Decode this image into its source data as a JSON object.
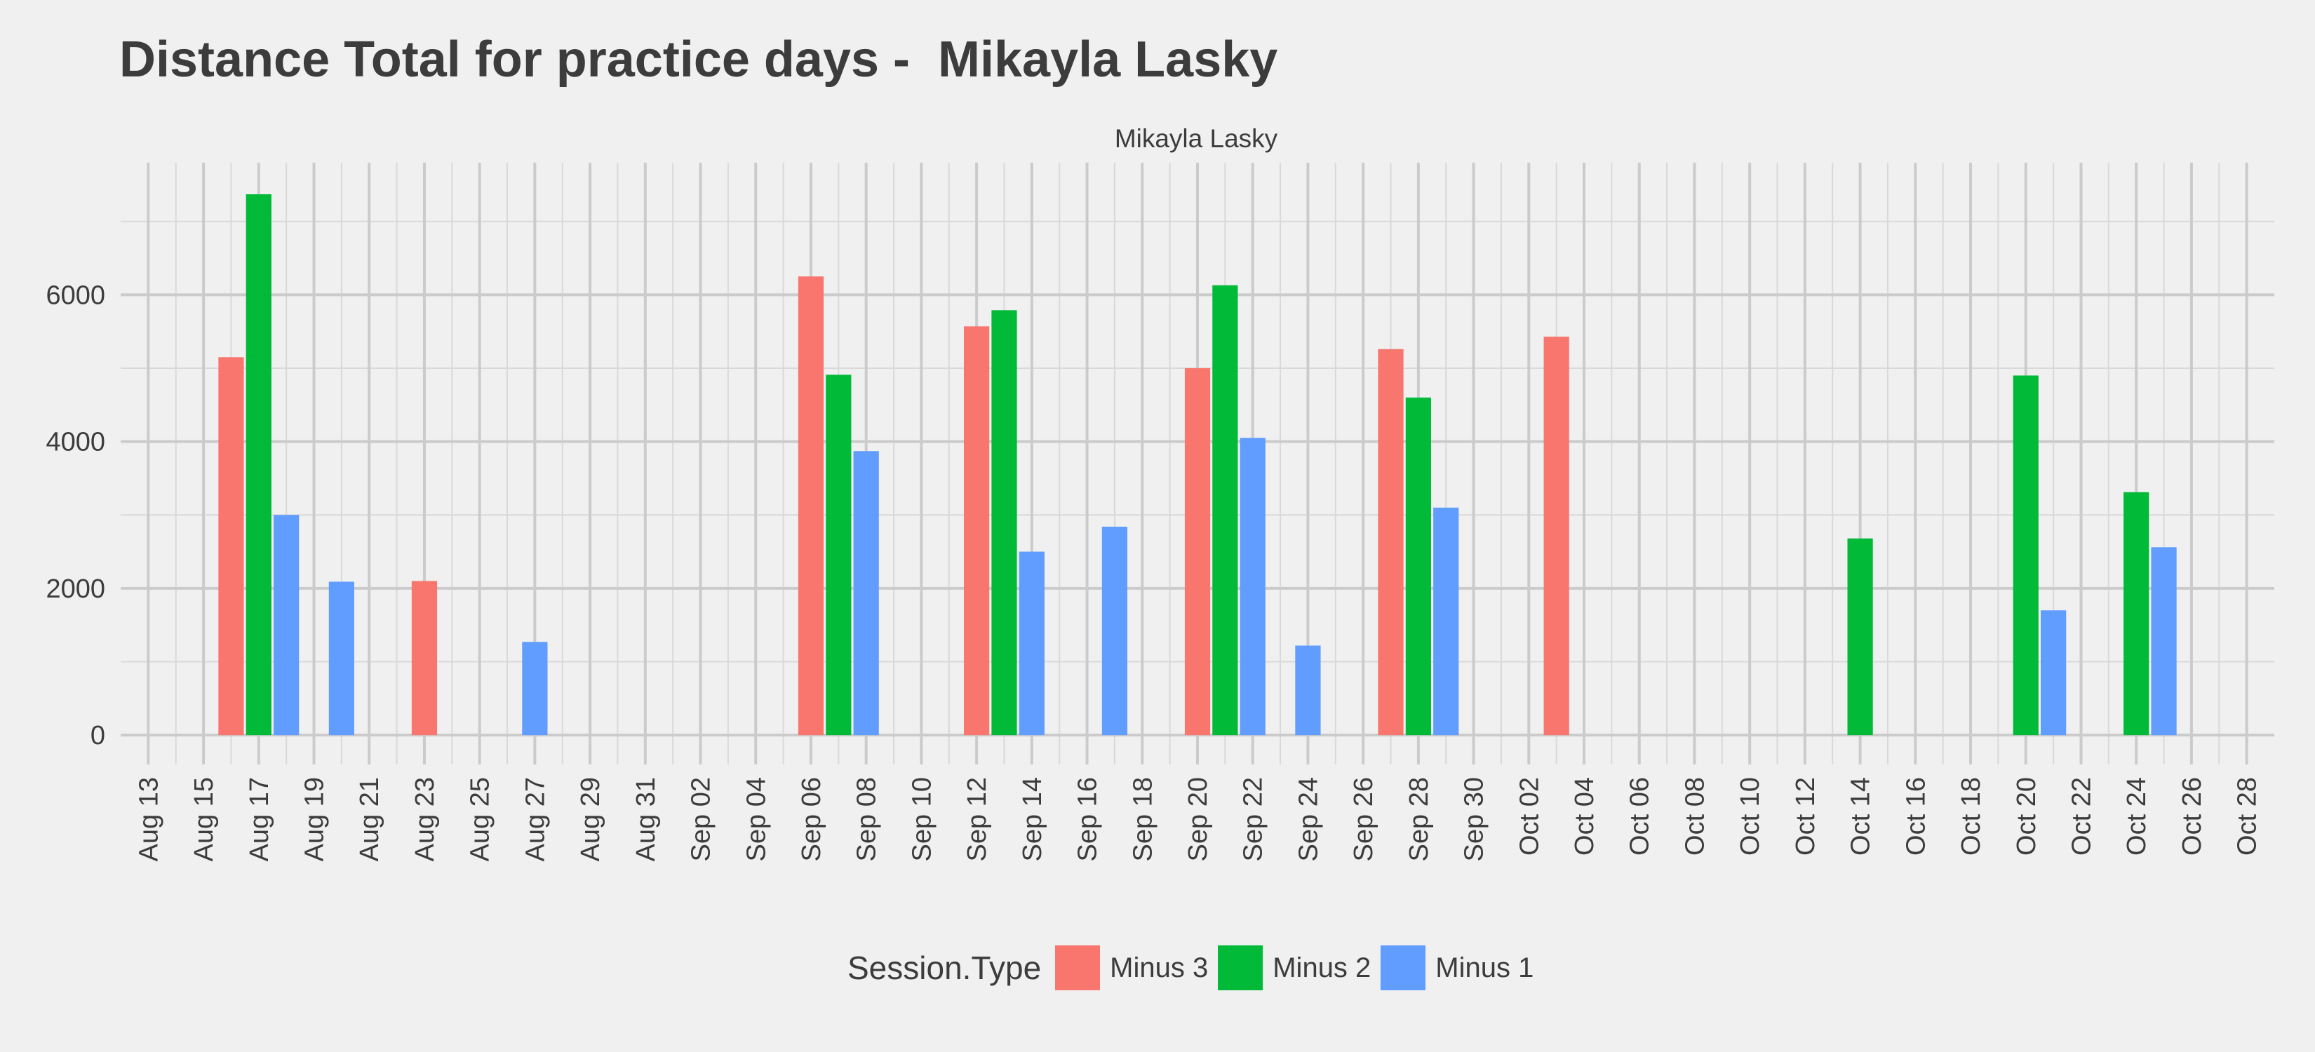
{
  "chart_data": {
    "type": "bar",
    "title": "Distance Total for practice days -  Mikayla Lasky",
    "facet_label": "Mikayla Lasky",
    "xlabel": "",
    "ylabel": "",
    "x_axis": {
      "type": "date",
      "range": [
        "2024-08-12",
        "2024-10-29"
      ],
      "tick_labels": [
        "Aug 13",
        "Aug 15",
        "Aug 17",
        "Aug 19",
        "Aug 21",
        "Aug 23",
        "Aug 25",
        "Aug 27",
        "Aug 29",
        "Aug 31",
        "Sep 02",
        "Sep 04",
        "Sep 06",
        "Sep 08",
        "Sep 10",
        "Sep 12",
        "Sep 14",
        "Sep 16",
        "Sep 18",
        "Sep 20",
        "Sep 22",
        "Sep 24",
        "Sep 26",
        "Sep 28",
        "Sep 30",
        "Oct 02",
        "Oct 04",
        "Oct 06",
        "Oct 08",
        "Oct 10",
        "Oct 12",
        "Oct 14",
        "Oct 16",
        "Oct 18",
        "Oct 20",
        "Oct 22",
        "Oct 24",
        "Oct 26",
        "Oct 28"
      ],
      "label_rotation": -90
    },
    "y_axis": {
      "range": [
        -400,
        7800
      ],
      "ticks": [
        0,
        2000,
        4000,
        6000
      ],
      "tick_labels": [
        "0",
        "2000",
        "4000",
        "6000"
      ]
    },
    "grid": true,
    "legend": {
      "title": "Session.Type",
      "position": "bottom"
    },
    "series": [
      {
        "name": "Minus 3",
        "color": "#F8766D",
        "points": [
          {
            "x": "2024-08-16",
            "y": 5150
          },
          {
            "x": "2024-08-23",
            "y": 2100
          },
          {
            "x": "2024-09-06",
            "y": 6250
          },
          {
            "x": "2024-09-12",
            "y": 5570
          },
          {
            "x": "2024-09-20",
            "y": 5000
          },
          {
            "x": "2024-09-27",
            "y": 5260
          },
          {
            "x": "2024-10-03",
            "y": 5430
          }
        ]
      },
      {
        "name": "Minus 2",
        "color": "#00BA38",
        "points": [
          {
            "x": "2024-08-17",
            "y": 7370
          },
          {
            "x": "2024-09-07",
            "y": 4910
          },
          {
            "x": "2024-09-13",
            "y": 5790
          },
          {
            "x": "2024-09-21",
            "y": 6130
          },
          {
            "x": "2024-09-28",
            "y": 4600
          },
          {
            "x": "2024-10-14",
            "y": 2680
          },
          {
            "x": "2024-10-20",
            "y": 4900
          },
          {
            "x": "2024-10-24",
            "y": 3310
          }
        ]
      },
      {
        "name": "Minus 1",
        "color": "#619CFF",
        "points": [
          {
            "x": "2024-08-18",
            "y": 3000
          },
          {
            "x": "2024-08-20",
            "y": 2090
          },
          {
            "x": "2024-08-27",
            "y": 1270
          },
          {
            "x": "2024-09-08",
            "y": 3870
          },
          {
            "x": "2024-09-14",
            "y": 2500
          },
          {
            "x": "2024-09-17",
            "y": 2840
          },
          {
            "x": "2024-09-22",
            "y": 4050
          },
          {
            "x": "2024-09-24",
            "y": 1220
          },
          {
            "x": "2024-09-29",
            "y": 3100
          },
          {
            "x": "2024-10-21",
            "y": 1700
          },
          {
            "x": "2024-10-25",
            "y": 2560
          }
        ]
      }
    ]
  }
}
